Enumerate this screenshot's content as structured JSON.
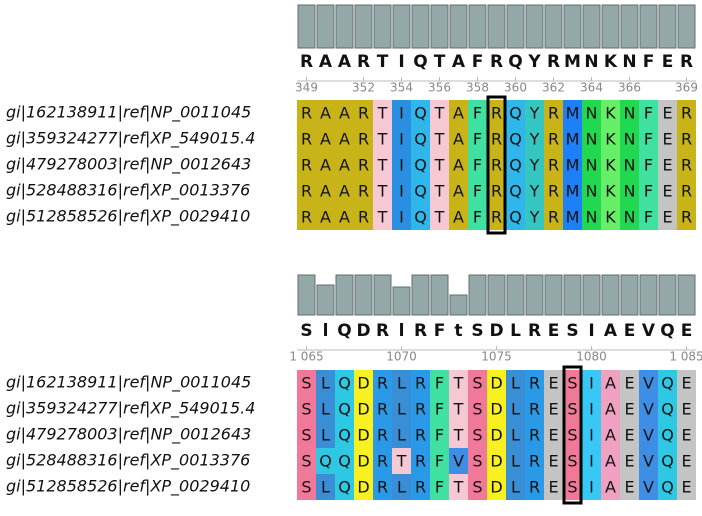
{
  "panels": [
    {
      "conservation": [
        1,
        1,
        1,
        1,
        1,
        1,
        1,
        1,
        1,
        1,
        1,
        1,
        1,
        1,
        1,
        1,
        1,
        1,
        1,
        1,
        1
      ],
      "consensus": [
        "R",
        "A",
        "A",
        "R",
        "T",
        "I",
        "Q",
        "T",
        "A",
        "F",
        "R",
        "Q",
        "Y",
        "R",
        "M",
        "N",
        "K",
        "N",
        "F",
        "E",
        "R"
      ],
      "positions": [
        349,
        352,
        354,
        356,
        358,
        360,
        362,
        364,
        366,
        369
      ],
      "rows": [
        {
          "name": "gi|162138911|ref|NP_0011045",
          "residues": [
            "R",
            "A",
            "A",
            "R",
            "T",
            "I",
            "Q",
            "T",
            "A",
            "F",
            "R",
            "Q",
            "Y",
            "R",
            "M",
            "N",
            "K",
            "N",
            "F",
            "E",
            "R"
          ]
        },
        {
          "name": "gi|359324277|ref|XP_549015.4",
          "residues": [
            "R",
            "A",
            "A",
            "R",
            "T",
            "I",
            "Q",
            "T",
            "A",
            "F",
            "R",
            "Q",
            "Y",
            "R",
            "M",
            "N",
            "K",
            "N",
            "F",
            "E",
            "R"
          ]
        },
        {
          "name": "gi|479278003|ref|NP_0012643",
          "residues": [
            "R",
            "A",
            "A",
            "R",
            "T",
            "I",
            "Q",
            "T",
            "A",
            "F",
            "R",
            "Q",
            "Y",
            "R",
            "M",
            "N",
            "K",
            "N",
            "F",
            "E",
            "R"
          ]
        },
        {
          "name": "gi|528488316|ref|XP_0013376",
          "residues": [
            "R",
            "A",
            "A",
            "R",
            "T",
            "I",
            "Q",
            "T",
            "A",
            "F",
            "R",
            "Q",
            "Y",
            "R",
            "M",
            "N",
            "K",
            "N",
            "F",
            "E",
            "R"
          ]
        },
        {
          "name": "gi|512858526|ref|XP_0029410",
          "residues": [
            "R",
            "A",
            "A",
            "R",
            "T",
            "I",
            "Q",
            "T",
            "A",
            "F",
            "R",
            "Q",
            "Y",
            "R",
            "M",
            "N",
            "K",
            "N",
            "F",
            "E",
            "R"
          ]
        }
      ]
    },
    {
      "conservation": [
        1,
        0.75,
        1,
        1,
        1,
        0.7,
        1,
        1,
        0.5,
        1,
        1,
        1,
        1,
        1,
        1,
        1,
        1,
        1,
        1,
        1,
        1
      ],
      "consensus": [
        "S",
        "l",
        "Q",
        "D",
        "R",
        "l",
        "R",
        "F",
        "t",
        "S",
        "D",
        "L",
        "R",
        "E",
        "S",
        "I",
        "A",
        "E",
        "V",
        "Q",
        "E"
      ],
      "positions": [
        {
          "value": 1065,
          "label": "1 065"
        },
        1070,
        1075,
        1080,
        {
          "value": 1085,
          "label": "1 085"
        }
      ],
      "rows": [
        {
          "name": "gi|162138911|ref|NP_0011045",
          "residues": [
            "S",
            "L",
            "Q",
            "D",
            "R",
            "L",
            "R",
            "F",
            "T",
            "S",
            "D",
            "L",
            "R",
            "E",
            "S",
            "I",
            "A",
            "E",
            "V",
            "Q",
            "E"
          ]
        },
        {
          "name": "gi|359324277|ref|XP_549015.4",
          "residues": [
            "S",
            "L",
            "Q",
            "D",
            "R",
            "L",
            "R",
            "F",
            "T",
            "S",
            "D",
            "L",
            "R",
            "E",
            "S",
            "I",
            "A",
            "E",
            "V",
            "Q",
            "E"
          ]
        },
        {
          "name": "gi|479278003|ref|NP_0012643",
          "residues": [
            "S",
            "L",
            "Q",
            "D",
            "R",
            "L",
            "R",
            "F",
            "T",
            "S",
            "D",
            "L",
            "R",
            "E",
            "S",
            "I",
            "A",
            "E",
            "V",
            "Q",
            "E"
          ]
        },
        {
          "name": "gi|528488316|ref|XP_0013376",
          "residues": [
            "S",
            "Q",
            "Q",
            "D",
            "R",
            "T",
            "R",
            "F",
            "V",
            "S",
            "D",
            "L",
            "R",
            "E",
            "S",
            "I",
            "A",
            "E",
            "V",
            "Q",
            "E"
          ]
        },
        {
          "name": "gi|512858526|ref|XP_0029410",
          "residues": [
            "S",
            "L",
            "Q",
            "D",
            "R",
            "L",
            "R",
            "F",
            "T",
            "S",
            "D",
            "L",
            "R",
            "E",
            "S",
            "I",
            "A",
            "E",
            "V",
            "Q",
            "E"
          ]
        }
      ]
    }
  ]
}
